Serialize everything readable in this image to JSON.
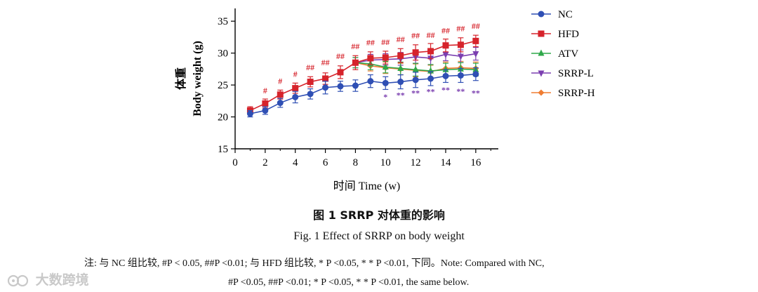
{
  "chart_data": {
    "type": "line",
    "ylabel_cn": "体重",
    "ylabel_en": "Body weight (g)",
    "xlabel": "时间 Time (w)",
    "x": [
      1,
      2,
      3,
      4,
      5,
      6,
      7,
      8,
      9,
      10,
      11,
      12,
      13,
      14,
      15,
      16
    ],
    "xticks": [
      0,
      2,
      4,
      6,
      8,
      10,
      12,
      14,
      16
    ],
    "yticks": [
      15,
      20,
      25,
      30,
      35
    ],
    "xlim": [
      0,
      17.5
    ],
    "ylim": [
      15,
      37
    ],
    "legend_position": "top-right",
    "series": [
      {
        "name": "NC",
        "color": "#2f4fb4",
        "marker": "circle",
        "values": [
          20.5,
          21.0,
          22.2,
          23.1,
          23.6,
          24.6,
          24.8,
          24.9,
          25.6,
          25.3,
          25.5,
          25.8,
          26.0,
          26.4,
          26.5,
          26.7
        ],
        "err": [
          0.5,
          0.6,
          0.7,
          0.9,
          0.8,
          1.0,
          0.8,
          0.9,
          1.0,
          1.0,
          1.1,
          1.2,
          1.1,
          1.0,
          1.1,
          1.0
        ]
      },
      {
        "name": "HFD",
        "color": "#d6232b",
        "marker": "square",
        "values": [
          21.0,
          22.1,
          23.5,
          24.5,
          25.5,
          26.0,
          27.0,
          28.5,
          29.2,
          29.3,
          29.6,
          30.1,
          30.3,
          31.2,
          31.3,
          31.9
        ],
        "err": [
          0.6,
          0.7,
          0.7,
          0.8,
          0.8,
          0.9,
          1.0,
          1.1,
          1.0,
          1.0,
          1.1,
          1.2,
          1.2,
          1.0,
          1.1,
          0.9
        ]
      },
      {
        "name": "ATV",
        "color": "#2fa84a",
        "marker": "triangle-up",
        "values": [
          null,
          null,
          null,
          null,
          null,
          null,
          null,
          28.5,
          28.3,
          27.8,
          27.6,
          27.4,
          27.2,
          27.4,
          27.5,
          27.4
        ],
        "err": [
          0,
          0,
          0,
          0,
          0,
          0,
          0,
          0.8,
          0.9,
          0.9,
          1.0,
          1.0,
          1.0,
          1.0,
          1.0,
          1.0
        ]
      },
      {
        "name": "SRRP-L",
        "color": "#7b3fb0",
        "marker": "triangle-down",
        "values": [
          null,
          null,
          null,
          null,
          null,
          null,
          null,
          28.5,
          28.9,
          29.0,
          29.1,
          29.4,
          29.2,
          29.8,
          29.5,
          29.9
        ],
        "err": [
          0,
          0,
          0,
          0,
          0,
          0,
          0,
          0.8,
          0.9,
          0.9,
          1.0,
          1.0,
          1.0,
          1.0,
          1.0,
          1.0
        ]
      },
      {
        "name": "SRRP-H",
        "color": "#ef7d32",
        "marker": "diamond",
        "values": [
          null,
          null,
          null,
          null,
          null,
          null,
          null,
          28.5,
          28.0,
          27.7,
          27.5,
          27.3,
          27.1,
          27.6,
          27.7,
          27.6
        ],
        "err": [
          0,
          0,
          0,
          0,
          0,
          0,
          0.8,
          0.8,
          0.8,
          0.9,
          0.9,
          1.0,
          1.0,
          1.0,
          1.0,
          1.0
        ]
      }
    ],
    "annotations": [
      {
        "x": 2,
        "text": "#",
        "color": "#d6232b",
        "y": 23.7
      },
      {
        "x": 3,
        "text": "#",
        "color": "#d6232b",
        "y": 25.2
      },
      {
        "x": 4,
        "text": "#",
        "color": "#d6232b",
        "y": 26.3
      },
      {
        "x": 5,
        "text": "##",
        "color": "#d6232b",
        "y": 27.3
      },
      {
        "x": 6,
        "text": "##",
        "color": "#d6232b",
        "y": 28.1
      },
      {
        "x": 7,
        "text": "##",
        "color": "#d6232b",
        "y": 29.1
      },
      {
        "x": 8,
        "text": "##",
        "color": "#d6232b",
        "y": 30.6
      },
      {
        "x": 9,
        "text": "##",
        "color": "#d6232b",
        "y": 31.2
      },
      {
        "x": 10,
        "text": "##",
        "color": "#d6232b",
        "y": 31.3
      },
      {
        "x": 11,
        "text": "##",
        "color": "#d6232b",
        "y": 31.7
      },
      {
        "x": 12,
        "text": "##",
        "color": "#d6232b",
        "y": 32.3
      },
      {
        "x": 13,
        "text": "##",
        "color": "#d6232b",
        "y": 32.4
      },
      {
        "x": 14,
        "text": "##",
        "color": "#d6232b",
        "y": 33.1
      },
      {
        "x": 15,
        "text": "##",
        "color": "#d6232b",
        "y": 33.4
      },
      {
        "x": 16,
        "text": "##",
        "color": "#d6232b",
        "y": 33.8
      },
      {
        "x": 10,
        "text": "*",
        "color": "#7b3fb0",
        "y": 22.7
      },
      {
        "x": 11,
        "text": "**",
        "color": "#7b3fb0",
        "y": 23.0
      },
      {
        "x": 12,
        "text": "**",
        "color": "#7b3fb0",
        "y": 23.3
      },
      {
        "x": 13,
        "text": "**",
        "color": "#7b3fb0",
        "y": 23.5
      },
      {
        "x": 14,
        "text": "**",
        "color": "#7b3fb0",
        "y": 23.8
      },
      {
        "x": 15,
        "text": "**",
        "color": "#7b3fb0",
        "y": 23.6
      },
      {
        "x": 16,
        "text": "**",
        "color": "#7b3fb0",
        "y": 23.3
      }
    ]
  },
  "caption": {
    "cn": "图 1    SRRP 对体重的影响",
    "en": "Fig. 1    Effect of SRRP on body weight"
  },
  "notes": {
    "line1": "注: 与 NC 组比较, #P < 0.05, ##P <0.01; 与 HFD 组比较, * P <0.05, * * P <0.01, 下同。Note: Compared with NC,",
    "line2": "#P <0.05, ##P <0.01; * P <0.05, * * P <0.01, the same below."
  },
  "watermark": {
    "text": "大数跨境",
    "icon": "watermark-logo-icon"
  }
}
